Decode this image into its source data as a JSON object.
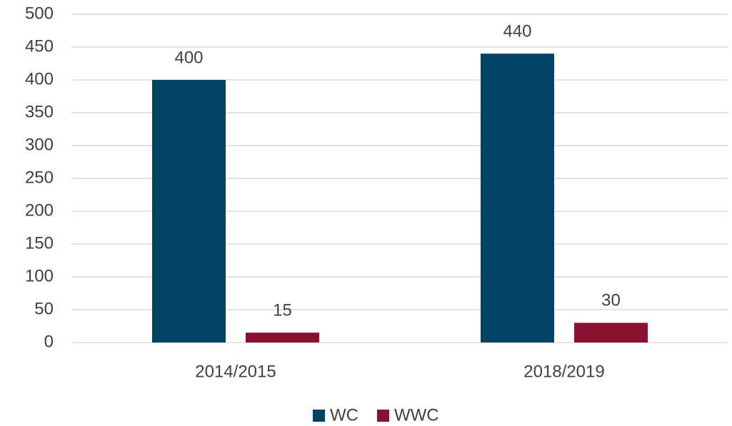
{
  "chart_data": {
    "type": "bar",
    "categories": [
      "2014/2015",
      "2018/2019"
    ],
    "series": [
      {
        "name": "WC",
        "color": "#004364",
        "values": [
          400,
          440
        ]
      },
      {
        "name": "WWC",
        "color": "#8a1032",
        "values": [
          15,
          30
        ]
      }
    ],
    "ylim": [
      0,
      500
    ],
    "yticks": [
      0,
      50,
      100,
      150,
      200,
      250,
      300,
      350,
      400,
      450,
      500
    ],
    "grid": true,
    "legend": "bottom",
    "data_labels": true
  }
}
